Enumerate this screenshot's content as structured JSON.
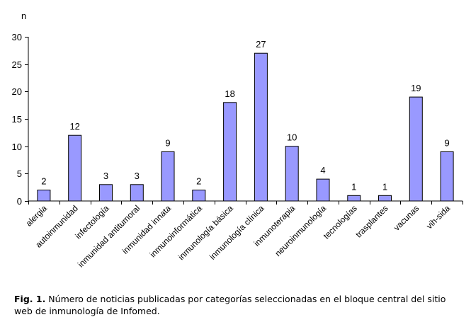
{
  "chart_data": {
    "type": "bar",
    "ylabel": "n",
    "xlabel": "",
    "title": "",
    "ylim": [
      0,
      30
    ],
    "yticks": [
      0,
      5,
      10,
      15,
      20,
      25,
      30
    ],
    "grid": false,
    "bar_color": "#9999ff",
    "bar_edge_color": "#000000",
    "categories": [
      "alergia",
      "autoinmunidad",
      "infectología",
      "inmunidad antitumoral",
      "inmunidad innata",
      "inmunoinformática",
      "inmunología básica",
      "inmunología clínica",
      "inmunoterapia",
      "neuroinmunología",
      "tecnologías",
      "trasplantes",
      "vacunas",
      "vih-sida"
    ],
    "values": [
      2,
      12,
      3,
      3,
      9,
      2,
      18,
      27,
      10,
      4,
      1,
      1,
      19,
      9
    ]
  },
  "caption": {
    "figure_label": "Fig. 1.",
    "text": " Número de noticias publicadas por categorías seleccionadas en el bloque central del sitio web de inmunología de Infomed."
  }
}
